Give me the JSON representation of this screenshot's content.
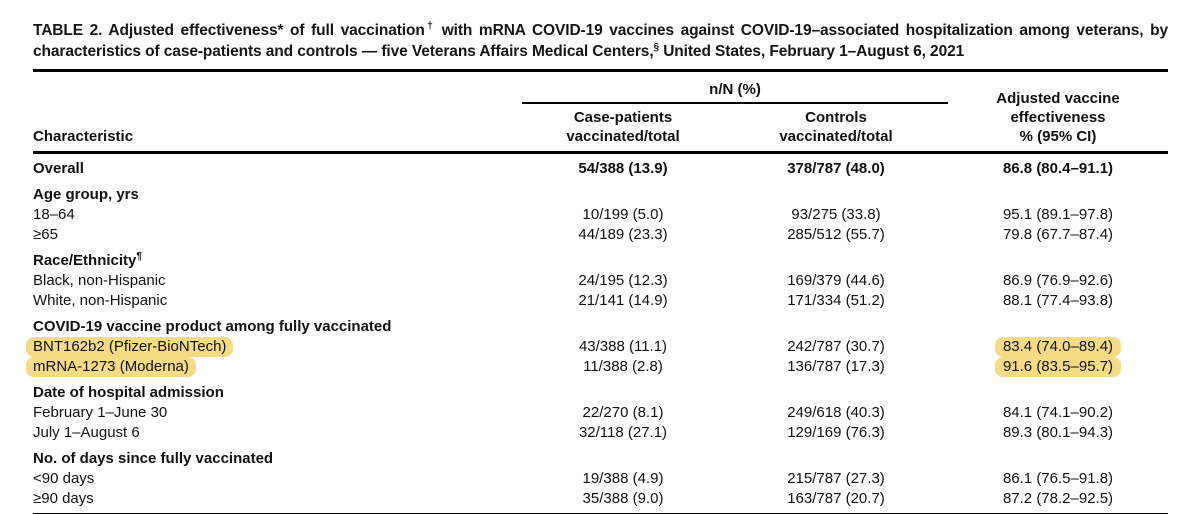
{
  "title": {
    "part1": "TABLE 2. Adjusted effectiveness* of full vaccination",
    "sup1": "†",
    "part2": " with mRNA COVID-19 vaccines against COVID-19–associated hospitalization among veterans, by characteristics of case-patients and controls — five Veterans Affairs Medical Centers,",
    "sup2": "§",
    "part3": " United States, February 1–August 6, 2021"
  },
  "header": {
    "characteristic": "Characteristic",
    "nn_label": "n/N (%)",
    "case_patients": "Case-patients\nvaccinated/total",
    "controls": "Controls\nvaccinated/total",
    "ve": "Adjusted vaccine\neffectiveness\n% (95% CI)"
  },
  "highlight_color": "#f6db85",
  "table": {
    "rows": [
      {
        "type": "overall",
        "label": "Overall",
        "sup": "",
        "case": "54/388 (13.9)",
        "controls": "378/787 (48.0)",
        "ve": "86.8 (80.4–91.1)"
      },
      {
        "type": "section",
        "label": "Age group, yrs",
        "sup": "",
        "case": "",
        "controls": "",
        "ve": ""
      },
      {
        "type": "data",
        "label": "18–64",
        "sup": "",
        "case": "10/199 (5.0)",
        "controls": "93/275 (33.8)",
        "ve": "95.1 (89.1–97.8)"
      },
      {
        "type": "data",
        "label": "≥65",
        "sup": "",
        "case": "44/189 (23.3)",
        "controls": "285/512 (55.7)",
        "ve": "79.8 (67.7–87.4)"
      },
      {
        "type": "section",
        "label": "Race/Ethnicity",
        "sup": "¶",
        "case": "",
        "controls": "",
        "ve": ""
      },
      {
        "type": "data",
        "label": "Black, non-Hispanic",
        "sup": "",
        "case": "24/195 (12.3)",
        "controls": "169/379 (44.6)",
        "ve": "86.9 (76.9–92.6)"
      },
      {
        "type": "data",
        "label": "White, non-Hispanic",
        "sup": "",
        "case": "21/141 (14.9)",
        "controls": "171/334 (51.2)",
        "ve": "88.1 (77.4–93.8)"
      },
      {
        "type": "section",
        "label": "COVID-19 vaccine product among fully vaccinated",
        "sup": "",
        "case": "",
        "controls": "",
        "ve": ""
      },
      {
        "type": "data",
        "label": "BNT162b2 (Pfizer-BioNTech)",
        "sup": "",
        "case": "43/388 (11.1)",
        "controls": "242/787 (30.7)",
        "ve": "83.4 (74.0–89.4)",
        "highlight_label": true,
        "highlight_ve": true
      },
      {
        "type": "data",
        "label": "mRNA-1273 (Moderna)",
        "sup": "",
        "case": "11/388 (2.8)",
        "controls": "136/787 (17.3)",
        "ve": "91.6 (83.5–95.7)",
        "highlight_label": true,
        "highlight_ve": true
      },
      {
        "type": "section",
        "label": "Date of hospital admission",
        "sup": "",
        "case": "",
        "controls": "",
        "ve": ""
      },
      {
        "type": "data",
        "label": "February 1–June 30",
        "sup": "",
        "case": "22/270 (8.1)",
        "controls": "249/618 (40.3)",
        "ve": "84.1 (74.1–90.2)"
      },
      {
        "type": "data",
        "label": "July 1–August 6",
        "sup": "",
        "case": "32/118 (27.1)",
        "controls": "129/169 (76.3)",
        "ve": "89.3 (80.1–94.3)"
      },
      {
        "type": "section",
        "label": "No. of days since fully vaccinated",
        "sup": "",
        "case": "",
        "controls": "",
        "ve": ""
      },
      {
        "type": "data",
        "label": "<90 days",
        "sup": "",
        "case": "19/388 (4.9)",
        "controls": "215/787 (27.3)",
        "ve": "86.1 (76.5–91.8)"
      },
      {
        "type": "data",
        "label": "≥90 days",
        "sup": "",
        "case": "35/388 (9.0)",
        "controls": "163/787 (20.7)",
        "ve": "87.2 (78.2–92.5)"
      }
    ]
  }
}
